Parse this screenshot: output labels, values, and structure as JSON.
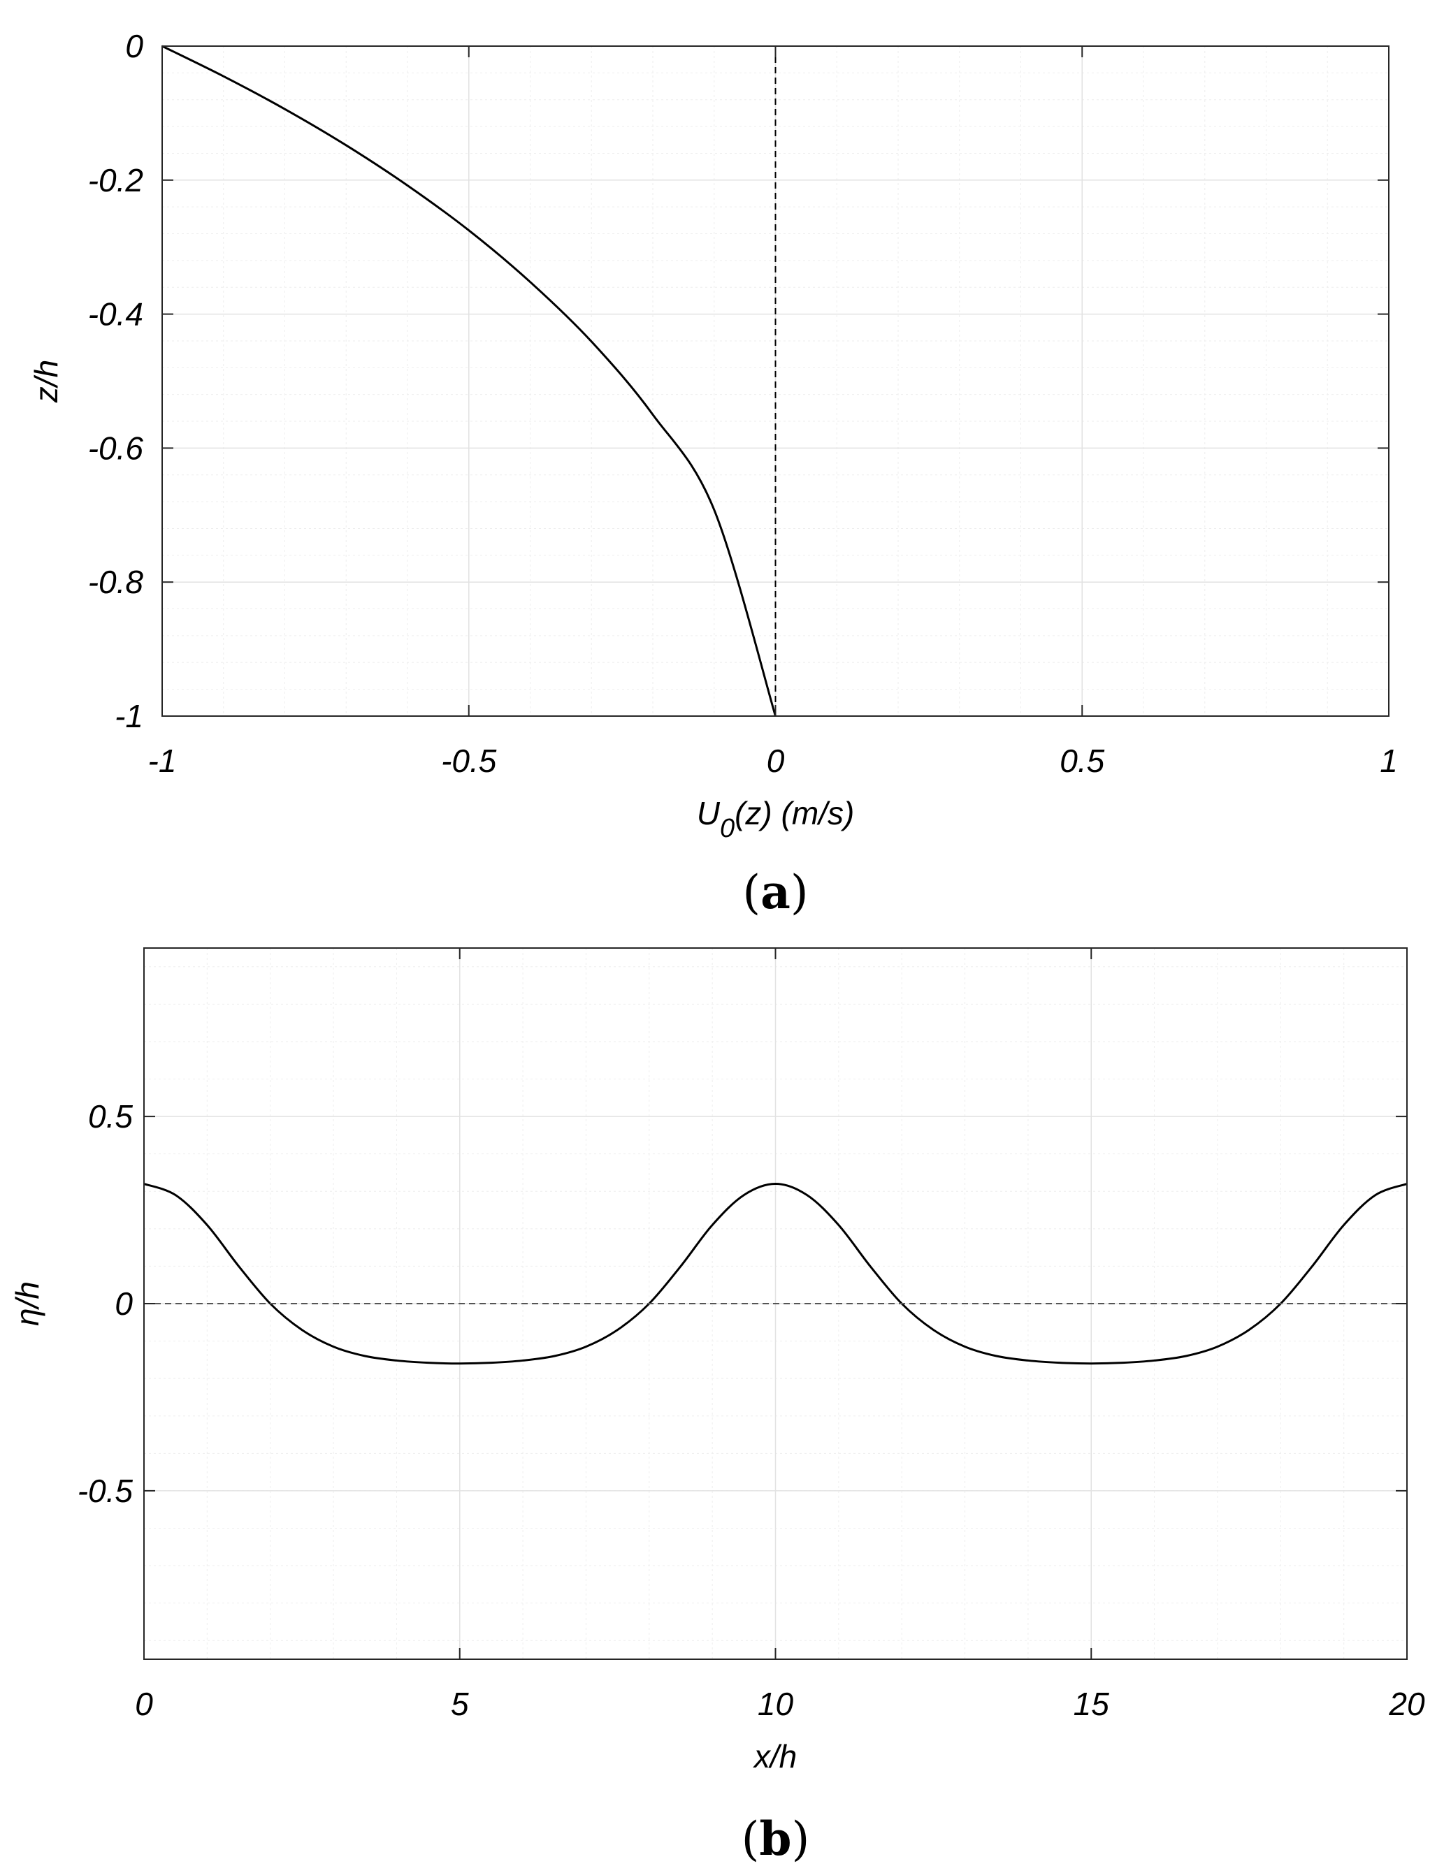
{
  "chart_data": [
    {
      "type": "line",
      "panel_label": "(a)",
      "panel_label_letter": "a",
      "xlabel_main": "U",
      "xlabel_sub": "0",
      "xlabel_rest": "(z) (m/s)",
      "ylabel": "z/h",
      "xlim": [
        -1,
        1
      ],
      "ylim": [
        -1,
        0
      ],
      "x_ticks": [
        "-1",
        "-0.5",
        "0",
        "0.5",
        "1"
      ],
      "y_ticks": [
        "0",
        "-0.2",
        "-0.4",
        "-0.6",
        "-0.8",
        "-1"
      ],
      "grid": true,
      "series": [
        {
          "style": "solid",
          "x": [
            -1.0,
            -0.9,
            -0.8,
            -0.7,
            -0.6,
            -0.5,
            -0.4,
            -0.3,
            -0.2,
            -0.1,
            0.0
          ],
          "y": [
            0.0,
            -0.045,
            -0.094,
            -0.148,
            -0.208,
            -0.275,
            -0.352,
            -0.441,
            -0.55,
            -0.692,
            -1.0
          ]
        },
        {
          "style": "dashed",
          "x": [
            0,
            0
          ],
          "y": [
            0,
            -1
          ]
        }
      ]
    },
    {
      "type": "line",
      "panel_label": "(b)",
      "panel_label_letter": "b",
      "xlabel": "x/h",
      "ylabel": "η/h",
      "xlim": [
        0,
        20
      ],
      "ylim": [
        -0.95,
        0.95
      ],
      "x_ticks": [
        "0",
        "5",
        "10",
        "15",
        "20"
      ],
      "y_ticks": [
        "0.5",
        "0",
        "-0.5"
      ],
      "grid": true,
      "series": [
        {
          "style": "solid",
          "description_period": 10,
          "x": [
            0,
            0.5,
            1,
            1.5,
            2,
            2.5,
            3,
            3.5,
            4,
            4.5,
            5,
            5.5,
            6,
            6.5,
            7,
            7.5,
            8,
            8.5,
            9,
            9.5,
            10,
            10.5,
            11,
            11.5,
            12,
            12.5,
            13,
            13.5,
            14,
            14.5,
            15,
            15.5,
            16,
            16.5,
            17,
            17.5,
            18,
            18.5,
            19,
            19.5,
            20
          ],
          "y": [
            0.32,
            0.29,
            0.21,
            0.1,
            0.0,
            -0.07,
            -0.115,
            -0.14,
            -0.152,
            -0.158,
            -0.16,
            -0.158,
            -0.152,
            -0.14,
            -0.115,
            -0.07,
            0.0,
            0.1,
            0.21,
            0.29,
            0.32,
            0.29,
            0.21,
            0.1,
            0.0,
            -0.07,
            -0.115,
            -0.14,
            -0.152,
            -0.158,
            -0.16,
            -0.158,
            -0.152,
            -0.14,
            -0.115,
            -0.07,
            0.0,
            0.1,
            0.21,
            0.29,
            0.32
          ]
        },
        {
          "style": "dashed",
          "x": [
            0,
            20
          ],
          "y": [
            0,
            0
          ]
        }
      ]
    }
  ]
}
